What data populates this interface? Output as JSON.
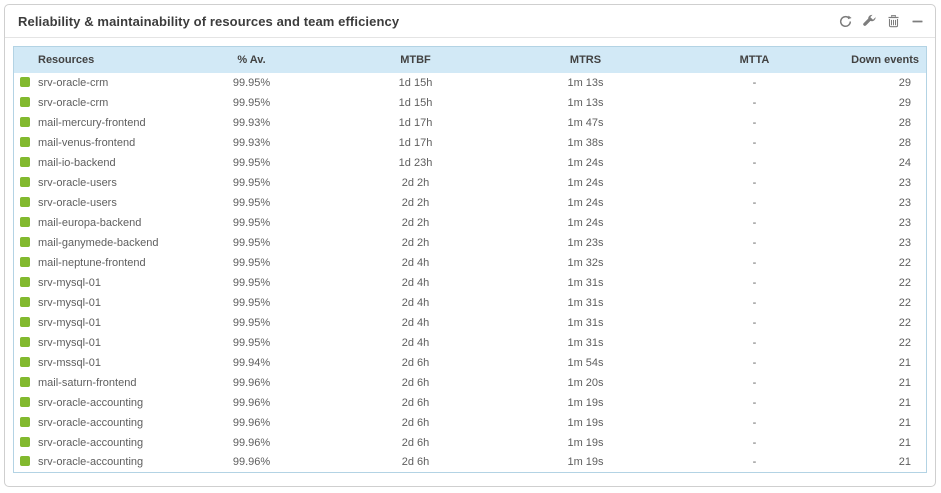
{
  "panel": {
    "title": "Reliability & maintainability of resources and team efficiency",
    "toolbar": {
      "icons": [
        "refresh",
        "wrench",
        "trash",
        "minimize"
      ]
    }
  },
  "table": {
    "columns": [
      {
        "key": "resource",
        "label": "Resources"
      },
      {
        "key": "availability",
        "label": "% Av."
      },
      {
        "key": "mtbf",
        "label": "MTBF"
      },
      {
        "key": "mtrs",
        "label": "MTRS"
      },
      {
        "key": "mtta",
        "label": "MTTA"
      },
      {
        "key": "down_events",
        "label": "Down events"
      }
    ],
    "rows": [
      {
        "resource": "srv-oracle-crm",
        "availability": "99.95%",
        "mtbf": "1d 15h",
        "mtrs": "1m 13s",
        "mtta": "-",
        "down_events": "29"
      },
      {
        "resource": "srv-oracle-crm",
        "availability": "99.95%",
        "mtbf": "1d 15h",
        "mtrs": "1m 13s",
        "mtta": "-",
        "down_events": "29"
      },
      {
        "resource": "mail-mercury-frontend",
        "availability": "99.93%",
        "mtbf": "1d 17h",
        "mtrs": "1m 47s",
        "mtta": "-",
        "down_events": "28"
      },
      {
        "resource": "mail-venus-frontend",
        "availability": "99.93%",
        "mtbf": "1d 17h",
        "mtrs": "1m 38s",
        "mtta": "-",
        "down_events": "28"
      },
      {
        "resource": "mail-io-backend",
        "availability": "99.95%",
        "mtbf": "1d 23h",
        "mtrs": "1m 24s",
        "mtta": "-",
        "down_events": "24"
      },
      {
        "resource": "srv-oracle-users",
        "availability": "99.95%",
        "mtbf": "2d 2h",
        "mtrs": "1m 24s",
        "mtta": "-",
        "down_events": "23"
      },
      {
        "resource": "srv-oracle-users",
        "availability": "99.95%",
        "mtbf": "2d 2h",
        "mtrs": "1m 24s",
        "mtta": "-",
        "down_events": "23"
      },
      {
        "resource": "mail-europa-backend",
        "availability": "99.95%",
        "mtbf": "2d 2h",
        "mtrs": "1m 24s",
        "mtta": "-",
        "down_events": "23"
      },
      {
        "resource": "mail-ganymede-backend",
        "availability": "99.95%",
        "mtbf": "2d 2h",
        "mtrs": "1m 23s",
        "mtta": "-",
        "down_events": "23"
      },
      {
        "resource": "mail-neptune-frontend",
        "availability": "99.95%",
        "mtbf": "2d 4h",
        "mtrs": "1m 32s",
        "mtta": "-",
        "down_events": "22"
      },
      {
        "resource": "srv-mysql-01",
        "availability": "99.95%",
        "mtbf": "2d 4h",
        "mtrs": "1m 31s",
        "mtta": "-",
        "down_events": "22"
      },
      {
        "resource": "srv-mysql-01",
        "availability": "99.95%",
        "mtbf": "2d 4h",
        "mtrs": "1m 31s",
        "mtta": "-",
        "down_events": "22"
      },
      {
        "resource": "srv-mysql-01",
        "availability": "99.95%",
        "mtbf": "2d 4h",
        "mtrs": "1m 31s",
        "mtta": "-",
        "down_events": "22"
      },
      {
        "resource": "srv-mysql-01",
        "availability": "99.95%",
        "mtbf": "2d 4h",
        "mtrs": "1m 31s",
        "mtta": "-",
        "down_events": "22"
      },
      {
        "resource": "srv-mssql-01",
        "availability": "99.94%",
        "mtbf": "2d 6h",
        "mtrs": "1m 54s",
        "mtta": "-",
        "down_events": "21"
      },
      {
        "resource": "mail-saturn-frontend",
        "availability": "99.96%",
        "mtbf": "2d 6h",
        "mtrs": "1m 20s",
        "mtta": "-",
        "down_events": "21"
      },
      {
        "resource": "srv-oracle-accounting",
        "availability": "99.96%",
        "mtbf": "2d 6h",
        "mtrs": "1m 19s",
        "mtta": "-",
        "down_events": "21"
      },
      {
        "resource": "srv-oracle-accounting",
        "availability": "99.96%",
        "mtbf": "2d 6h",
        "mtrs": "1m 19s",
        "mtta": "-",
        "down_events": "21"
      },
      {
        "resource": "srv-oracle-accounting",
        "availability": "99.96%",
        "mtbf": "2d 6h",
        "mtrs": "1m 19s",
        "mtta": "-",
        "down_events": "21"
      },
      {
        "resource": "srv-oracle-accounting",
        "availability": "99.96%",
        "mtbf": "2d 6h",
        "mtrs": "1m 19s",
        "mtta": "-",
        "down_events": "21"
      }
    ]
  },
  "colors": {
    "status_ok": "#82B92E",
    "header_bg": "#D2E9F6",
    "table_border": "#B3D3E4",
    "panel_border": "#CFCFCF",
    "title_text": "#3C3C3C",
    "body_text": "#5E5E5E",
    "icon_gray": "#7D7D7D"
  }
}
